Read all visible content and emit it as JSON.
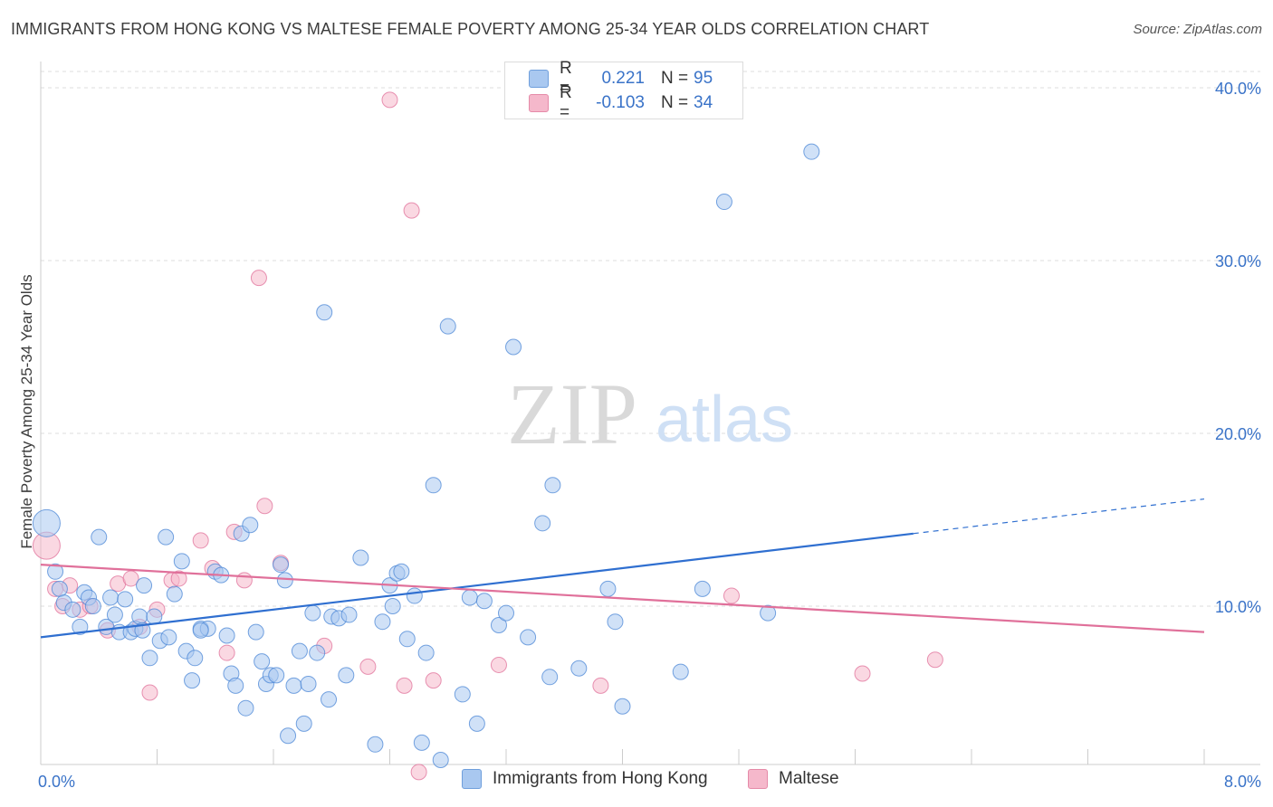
{
  "title": "IMMIGRANTS FROM HONG KONG VS MALTESE FEMALE POVERTY AMONG 25-34 YEAR OLDS CORRELATION CHART",
  "source": "Source: ZipAtlas.com",
  "watermark": {
    "zip": "ZIP",
    "atlas": "atlas"
  },
  "legend": {
    "rows": [
      {
        "r_label": "R =",
        "r_value": "0.221",
        "n_label": "N =",
        "n_value": "95",
        "color": "#a9c8f0"
      },
      {
        "r_label": "R =",
        "r_value": "-0.103",
        "n_label": "N =",
        "n_value": "34",
        "color": "#f5b8cb"
      }
    ]
  },
  "bottom_legend": [
    {
      "label": "Immigrants from Hong Kong",
      "color": "#a9c8f0"
    },
    {
      "label": "Maltese",
      "color": "#f5b8cb"
    }
  ],
  "chart_data": {
    "type": "scatter",
    "ylabel": "Female Poverty Among 25-34 Year Olds",
    "xlim": [
      0,
      8
    ],
    "ylim": [
      0,
      40
    ],
    "x_tick_labels": [
      {
        "value": 0,
        "label": "0.0%"
      },
      {
        "value": 8,
        "label": "8.0%"
      }
    ],
    "y_tick_labels": [
      {
        "value": 10,
        "label": "10.0%"
      },
      {
        "value": 20,
        "label": "20.0%"
      },
      {
        "value": 30,
        "label": "30.0%"
      },
      {
        "value": 40,
        "label": "40.0%"
      }
    ],
    "grid": "horizontal dashed",
    "legend_position": "top-center",
    "series": [
      {
        "name": "Immigrants from Hong Kong",
        "color": "#4a86d6",
        "fill": "#a9c8f0",
        "trend": {
          "x": [
            0,
            6.0
          ],
          "y": [
            8.2,
            14.2
          ],
          "dashed_to": [
            8.0,
            16.2
          ]
        },
        "points": [
          [
            0.04,
            14.8
          ],
          [
            0.1,
            12.0
          ],
          [
            0.13,
            11.0
          ],
          [
            0.16,
            10.2
          ],
          [
            0.22,
            9.8
          ],
          [
            0.27,
            8.8
          ],
          [
            0.3,
            10.8
          ],
          [
            0.33,
            10.5
          ],
          [
            0.36,
            10.0
          ],
          [
            0.4,
            14.0
          ],
          [
            0.45,
            8.8
          ],
          [
            0.48,
            10.5
          ],
          [
            0.51,
            9.5
          ],
          [
            0.54,
            8.5
          ],
          [
            0.58,
            10.4
          ],
          [
            0.62,
            8.5
          ],
          [
            0.65,
            8.7
          ],
          [
            0.68,
            9.4
          ],
          [
            0.71,
            11.2
          ],
          [
            0.75,
            7.0
          ],
          [
            0.78,
            9.4
          ],
          [
            0.82,
            8.0
          ],
          [
            0.86,
            14.0
          ],
          [
            0.88,
            8.2
          ],
          [
            0.92,
            10.7
          ],
          [
            0.97,
            12.6
          ],
          [
            1.0,
            7.4
          ],
          [
            1.04,
            5.7
          ],
          [
            1.06,
            7.0
          ],
          [
            1.1,
            8.7
          ],
          [
            1.15,
            8.7
          ],
          [
            1.2,
            12.0
          ],
          [
            1.24,
            11.8
          ],
          [
            1.28,
            8.3
          ],
          [
            1.31,
            6.1
          ],
          [
            1.34,
            5.4
          ],
          [
            1.38,
            14.2
          ],
          [
            1.41,
            4.1
          ],
          [
            1.44,
            14.7
          ],
          [
            1.48,
            8.5
          ],
          [
            1.52,
            6.8
          ],
          [
            1.55,
            5.5
          ],
          [
            1.58,
            6.0
          ],
          [
            1.62,
            6.0
          ],
          [
            1.65,
            12.4
          ],
          [
            1.68,
            11.5
          ],
          [
            1.7,
            2.5
          ],
          [
            1.74,
            5.4
          ],
          [
            1.78,
            7.4
          ],
          [
            1.81,
            3.2
          ],
          [
            1.84,
            5.5
          ],
          [
            1.87,
            9.6
          ],
          [
            1.9,
            7.3
          ],
          [
            1.95,
            27.0
          ],
          [
            1.98,
            4.6
          ],
          [
            2.0,
            9.4
          ],
          [
            2.05,
            9.3
          ],
          [
            2.1,
            6.0
          ],
          [
            2.2,
            12.8
          ],
          [
            2.3,
            2.0
          ],
          [
            2.35,
            9.1
          ],
          [
            2.4,
            11.2
          ],
          [
            2.42,
            10.0
          ],
          [
            2.45,
            11.9
          ],
          [
            2.48,
            12.0
          ],
          [
            2.52,
            8.1
          ],
          [
            2.57,
            10.6
          ],
          [
            2.62,
            2.1
          ],
          [
            2.65,
            7.3
          ],
          [
            2.7,
            17.0
          ],
          [
            2.75,
            1.1
          ],
          [
            2.8,
            26.2
          ],
          [
            2.9,
            4.9
          ],
          [
            2.95,
            10.5
          ],
          [
            3.0,
            3.2
          ],
          [
            3.05,
            10.3
          ],
          [
            3.15,
            8.9
          ],
          [
            3.2,
            9.6
          ],
          [
            3.25,
            25.0
          ],
          [
            3.35,
            8.2
          ],
          [
            3.45,
            14.8
          ],
          [
            3.5,
            5.9
          ],
          [
            3.52,
            17.0
          ],
          [
            3.7,
            6.4
          ],
          [
            3.9,
            11.0
          ],
          [
            3.95,
            9.1
          ],
          [
            4.0,
            4.2
          ],
          [
            4.4,
            6.2
          ],
          [
            4.55,
            11.0
          ],
          [
            4.7,
            33.4
          ],
          [
            5.0,
            9.6
          ],
          [
            5.3,
            36.3
          ],
          [
            0.7,
            8.6
          ],
          [
            1.1,
            8.6
          ],
          [
            2.12,
            9.5
          ]
        ]
      },
      {
        "name": "Maltese",
        "color": "#e0709a",
        "fill": "#f5b8cb",
        "trend": {
          "x": [
            0,
            8.0
          ],
          "y": [
            12.4,
            8.5
          ]
        },
        "points": [
          [
            0.04,
            13.5
          ],
          [
            0.1,
            11.0
          ],
          [
            0.15,
            10.0
          ],
          [
            0.2,
            11.2
          ],
          [
            0.27,
            9.8
          ],
          [
            0.34,
            10.0
          ],
          [
            0.46,
            8.6
          ],
          [
            0.53,
            11.3
          ],
          [
            0.62,
            11.6
          ],
          [
            0.68,
            8.8
          ],
          [
            0.75,
            5.0
          ],
          [
            0.8,
            9.8
          ],
          [
            0.9,
            11.5
          ],
          [
            0.95,
            11.6
          ],
          [
            1.1,
            13.8
          ],
          [
            1.18,
            12.2
          ],
          [
            1.28,
            7.3
          ],
          [
            1.33,
            14.3
          ],
          [
            1.4,
            11.5
          ],
          [
            1.5,
            29.0
          ],
          [
            1.54,
            15.8
          ],
          [
            1.65,
            12.5
          ],
          [
            1.95,
            7.7
          ],
          [
            2.25,
            6.5
          ],
          [
            2.4,
            39.3
          ],
          [
            2.5,
            5.4
          ],
          [
            2.55,
            32.9
          ],
          [
            2.6,
            0.4
          ],
          [
            2.7,
            5.7
          ],
          [
            3.15,
            6.6
          ],
          [
            3.85,
            5.4
          ],
          [
            4.75,
            10.6
          ],
          [
            5.65,
            6.1
          ],
          [
            6.15,
            6.9
          ]
        ]
      }
    ]
  }
}
